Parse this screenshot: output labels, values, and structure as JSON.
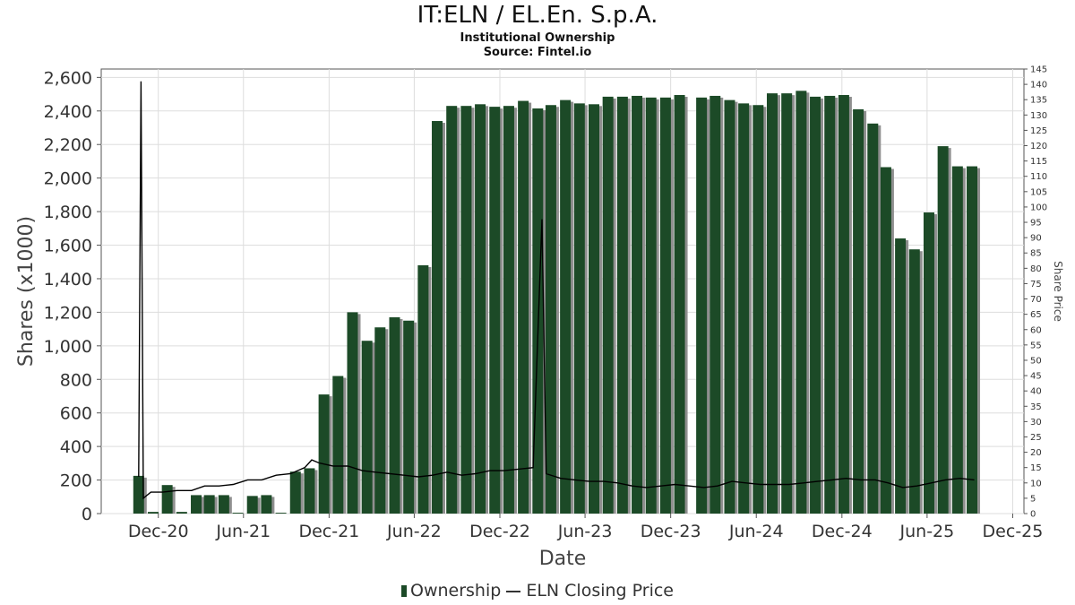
{
  "colors": {
    "bar": "#1c4a27",
    "bar_shadow": "#8f8f8f",
    "line": "#000000",
    "grid": "#dddddd",
    "axis": "#555555"
  },
  "chart_data": {
    "type": "bar",
    "title": "IT:ELN / EL.En. S.p.A.",
    "subtitle": "Institutional Ownership",
    "source": "Source: Fintel.io",
    "xlabel": "Date",
    "ylabel": "Shares (x1000)",
    "y2label": "Share Price",
    "ylim": [
      0,
      2650
    ],
    "y2lim": [
      0,
      145
    ],
    "xlim": [
      "2020-08-01",
      "2025-12-25"
    ],
    "grid": true,
    "legend_position": "bottom",
    "x_ticks": [
      {
        "label": "Dec-20",
        "date": "2020-12-01"
      },
      {
        "label": "Jun-21",
        "date": "2021-06-01"
      },
      {
        "label": "Dec-21",
        "date": "2021-12-01"
      },
      {
        "label": "Jun-22",
        "date": "2022-06-01"
      },
      {
        "label": "Dec-22",
        "date": "2022-12-01"
      },
      {
        "label": "Jun-23",
        "date": "2023-06-01"
      },
      {
        "label": "Dec-23",
        "date": "2023-12-01"
      },
      {
        "label": "Jun-24",
        "date": "2024-06-01"
      },
      {
        "label": "Dec-24",
        "date": "2024-12-01"
      },
      {
        "label": "Jun-25",
        "date": "2025-06-01"
      },
      {
        "label": "Dec-25",
        "date": "2025-12-01"
      }
    ],
    "y_ticks": [
      "0",
      "200",
      "400",
      "600",
      "800",
      "1,000",
      "1,200",
      "1,400",
      "1,600",
      "1,800",
      "2,000",
      "2,200",
      "2,400",
      "2,600"
    ],
    "y_tick_values": [
      0,
      200,
      400,
      600,
      800,
      1000,
      1200,
      1400,
      1600,
      1800,
      2000,
      2200,
      2400,
      2600
    ],
    "y2_ticks": [
      "0",
      "5",
      "10",
      "15",
      "20",
      "25",
      "30",
      "35",
      "40",
      "45",
      "50",
      "55",
      "60",
      "65",
      "70",
      "75",
      "80",
      "85",
      "90",
      "95",
      "100",
      "105",
      "110",
      "115",
      "120",
      "125",
      "130",
      "135",
      "140",
      "145"
    ],
    "y2_tick_values": [
      0,
      5,
      10,
      15,
      20,
      25,
      30,
      35,
      40,
      45,
      50,
      55,
      60,
      65,
      70,
      75,
      80,
      85,
      90,
      95,
      100,
      105,
      110,
      115,
      120,
      125,
      130,
      135,
      140,
      145
    ],
    "series": [
      {
        "name": "Ownership",
        "kind": "bar",
        "points": [
          [
            "2020-10-20",
            225
          ],
          [
            "2020-11-20",
            10
          ],
          [
            "2020-12-20",
            170
          ],
          [
            "2021-01-20",
            10
          ],
          [
            "2021-02-20",
            110
          ],
          [
            "2021-03-20",
            110
          ],
          [
            "2021-04-20",
            110
          ],
          [
            "2021-05-20",
            5
          ],
          [
            "2021-06-20",
            105
          ],
          [
            "2021-07-20",
            110
          ],
          [
            "2021-08-20",
            5
          ],
          [
            "2021-09-20",
            250
          ],
          [
            "2021-10-20",
            270
          ],
          [
            "2021-11-20",
            710
          ],
          [
            "2021-12-20",
            820
          ],
          [
            "2022-01-20",
            1200
          ],
          [
            "2022-02-20",
            1030
          ],
          [
            "2022-03-20",
            1110
          ],
          [
            "2022-04-20",
            1170
          ],
          [
            "2022-05-20",
            1150
          ],
          [
            "2022-06-20",
            1480
          ],
          [
            "2022-07-20",
            2340
          ],
          [
            "2022-08-20",
            2430
          ],
          [
            "2022-09-20",
            2430
          ],
          [
            "2022-10-20",
            2440
          ],
          [
            "2022-11-20",
            2425
          ],
          [
            "2022-12-20",
            2430
          ],
          [
            "2023-01-20",
            2460
          ],
          [
            "2023-02-20",
            2415
          ],
          [
            "2023-03-20",
            2435
          ],
          [
            "2023-04-20",
            2465
          ],
          [
            "2023-05-20",
            2445
          ],
          [
            "2023-06-20",
            2440
          ],
          [
            "2023-07-20",
            2485
          ],
          [
            "2023-08-20",
            2485
          ],
          [
            "2023-09-20",
            2490
          ],
          [
            "2023-10-20",
            2480
          ],
          [
            "2023-11-20",
            2480
          ],
          [
            "2023-12-20",
            2495
          ],
          [
            "2024-02-05",
            2480
          ],
          [
            "2024-03-05",
            2490
          ],
          [
            "2024-04-05",
            2465
          ],
          [
            "2024-05-05",
            2445
          ],
          [
            "2024-06-05",
            2435
          ],
          [
            "2024-07-05",
            2505
          ],
          [
            "2024-08-05",
            2505
          ],
          [
            "2024-09-05",
            2520
          ],
          [
            "2024-10-05",
            2485
          ],
          [
            "2024-11-05",
            2490
          ],
          [
            "2024-12-05",
            2495
          ],
          [
            "2025-01-05",
            2410
          ],
          [
            "2025-02-05",
            2325
          ],
          [
            "2025-03-05",
            2065
          ],
          [
            "2025-04-05",
            1640
          ],
          [
            "2025-05-05",
            1575
          ],
          [
            "2025-06-05",
            1795
          ],
          [
            "2025-07-05",
            2190
          ],
          [
            "2025-08-05",
            2070
          ],
          [
            "2025-09-05",
            2070
          ]
        ]
      },
      {
        "name": "ELN Closing Price",
        "kind": "line",
        "axis": "right",
        "points": [
          [
            "2020-10-20",
            12
          ],
          [
            "2020-10-25",
            141
          ],
          [
            "2020-10-30",
            5
          ],
          [
            "2020-11-15",
            7
          ],
          [
            "2020-12-10",
            7
          ],
          [
            "2021-01-10",
            7.5
          ],
          [
            "2021-02-10",
            7.5
          ],
          [
            "2021-03-10",
            9
          ],
          [
            "2021-04-10",
            9
          ],
          [
            "2021-05-10",
            9.5
          ],
          [
            "2021-06-10",
            11
          ],
          [
            "2021-07-10",
            11
          ],
          [
            "2021-08-10",
            12.5
          ],
          [
            "2021-09-10",
            13
          ],
          [
            "2021-10-10",
            15
          ],
          [
            "2021-10-25",
            17.5
          ],
          [
            "2021-11-10",
            16.5
          ],
          [
            "2021-12-10",
            15.5
          ],
          [
            "2022-01-10",
            15.5
          ],
          [
            "2022-02-10",
            14
          ],
          [
            "2022-03-10",
            13.5
          ],
          [
            "2022-04-10",
            13
          ],
          [
            "2022-05-10",
            12.5
          ],
          [
            "2022-06-10",
            12
          ],
          [
            "2022-07-10",
            12.5
          ],
          [
            "2022-08-10",
            13.5
          ],
          [
            "2022-09-10",
            12.5
          ],
          [
            "2022-10-10",
            13
          ],
          [
            "2022-11-10",
            14
          ],
          [
            "2022-12-10",
            14
          ],
          [
            "2023-01-10",
            14.5
          ],
          [
            "2023-02-10",
            15
          ],
          [
            "2023-03-01",
            96
          ],
          [
            "2023-03-10",
            13
          ],
          [
            "2023-04-10",
            11.5
          ],
          [
            "2023-05-10",
            11
          ],
          [
            "2023-06-10",
            10.5
          ],
          [
            "2023-07-10",
            10.5
          ],
          [
            "2023-08-10",
            10
          ],
          [
            "2023-09-10",
            9
          ],
          [
            "2023-10-10",
            8.5
          ],
          [
            "2023-11-10",
            9
          ],
          [
            "2023-12-10",
            9.5
          ],
          [
            "2024-01-10",
            9
          ],
          [
            "2024-02-10",
            8.5
          ],
          [
            "2024-03-10",
            9
          ],
          [
            "2024-04-10",
            10.5
          ],
          [
            "2024-05-10",
            10
          ],
          [
            "2024-06-10",
            9.5
          ],
          [
            "2024-07-10",
            9.5
          ],
          [
            "2024-08-10",
            9.5
          ],
          [
            "2024-09-10",
            10
          ],
          [
            "2024-10-10",
            10.5
          ],
          [
            "2024-11-10",
            11
          ],
          [
            "2024-12-10",
            11.5
          ],
          [
            "2025-01-10",
            11
          ],
          [
            "2025-02-10",
            11
          ],
          [
            "2025-03-10",
            10
          ],
          [
            "2025-04-10",
            8.5
          ],
          [
            "2025-05-10",
            9
          ],
          [
            "2025-06-10",
            10
          ],
          [
            "2025-07-10",
            11
          ],
          [
            "2025-08-10",
            11.5
          ],
          [
            "2025-09-10",
            11
          ]
        ]
      }
    ]
  }
}
